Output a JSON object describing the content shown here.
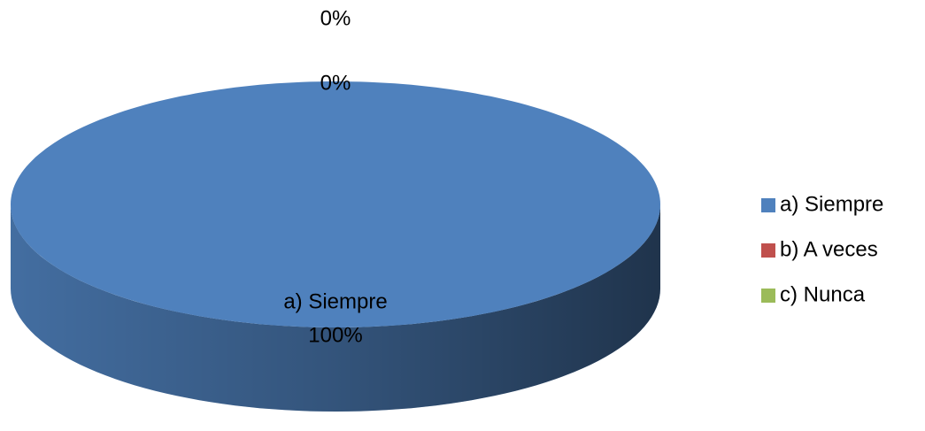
{
  "chart_data": {
    "type": "pie3d",
    "categories": [
      "a) Siempre",
      "b) A veces",
      "c) Nunca"
    ],
    "values": [
      100,
      0,
      0
    ],
    "value_labels": [
      "100%",
      "0%",
      "0%"
    ],
    "colors": [
      "#4f81bd",
      "#c0504d",
      "#9bbb59"
    ],
    "legend": "right"
  }
}
